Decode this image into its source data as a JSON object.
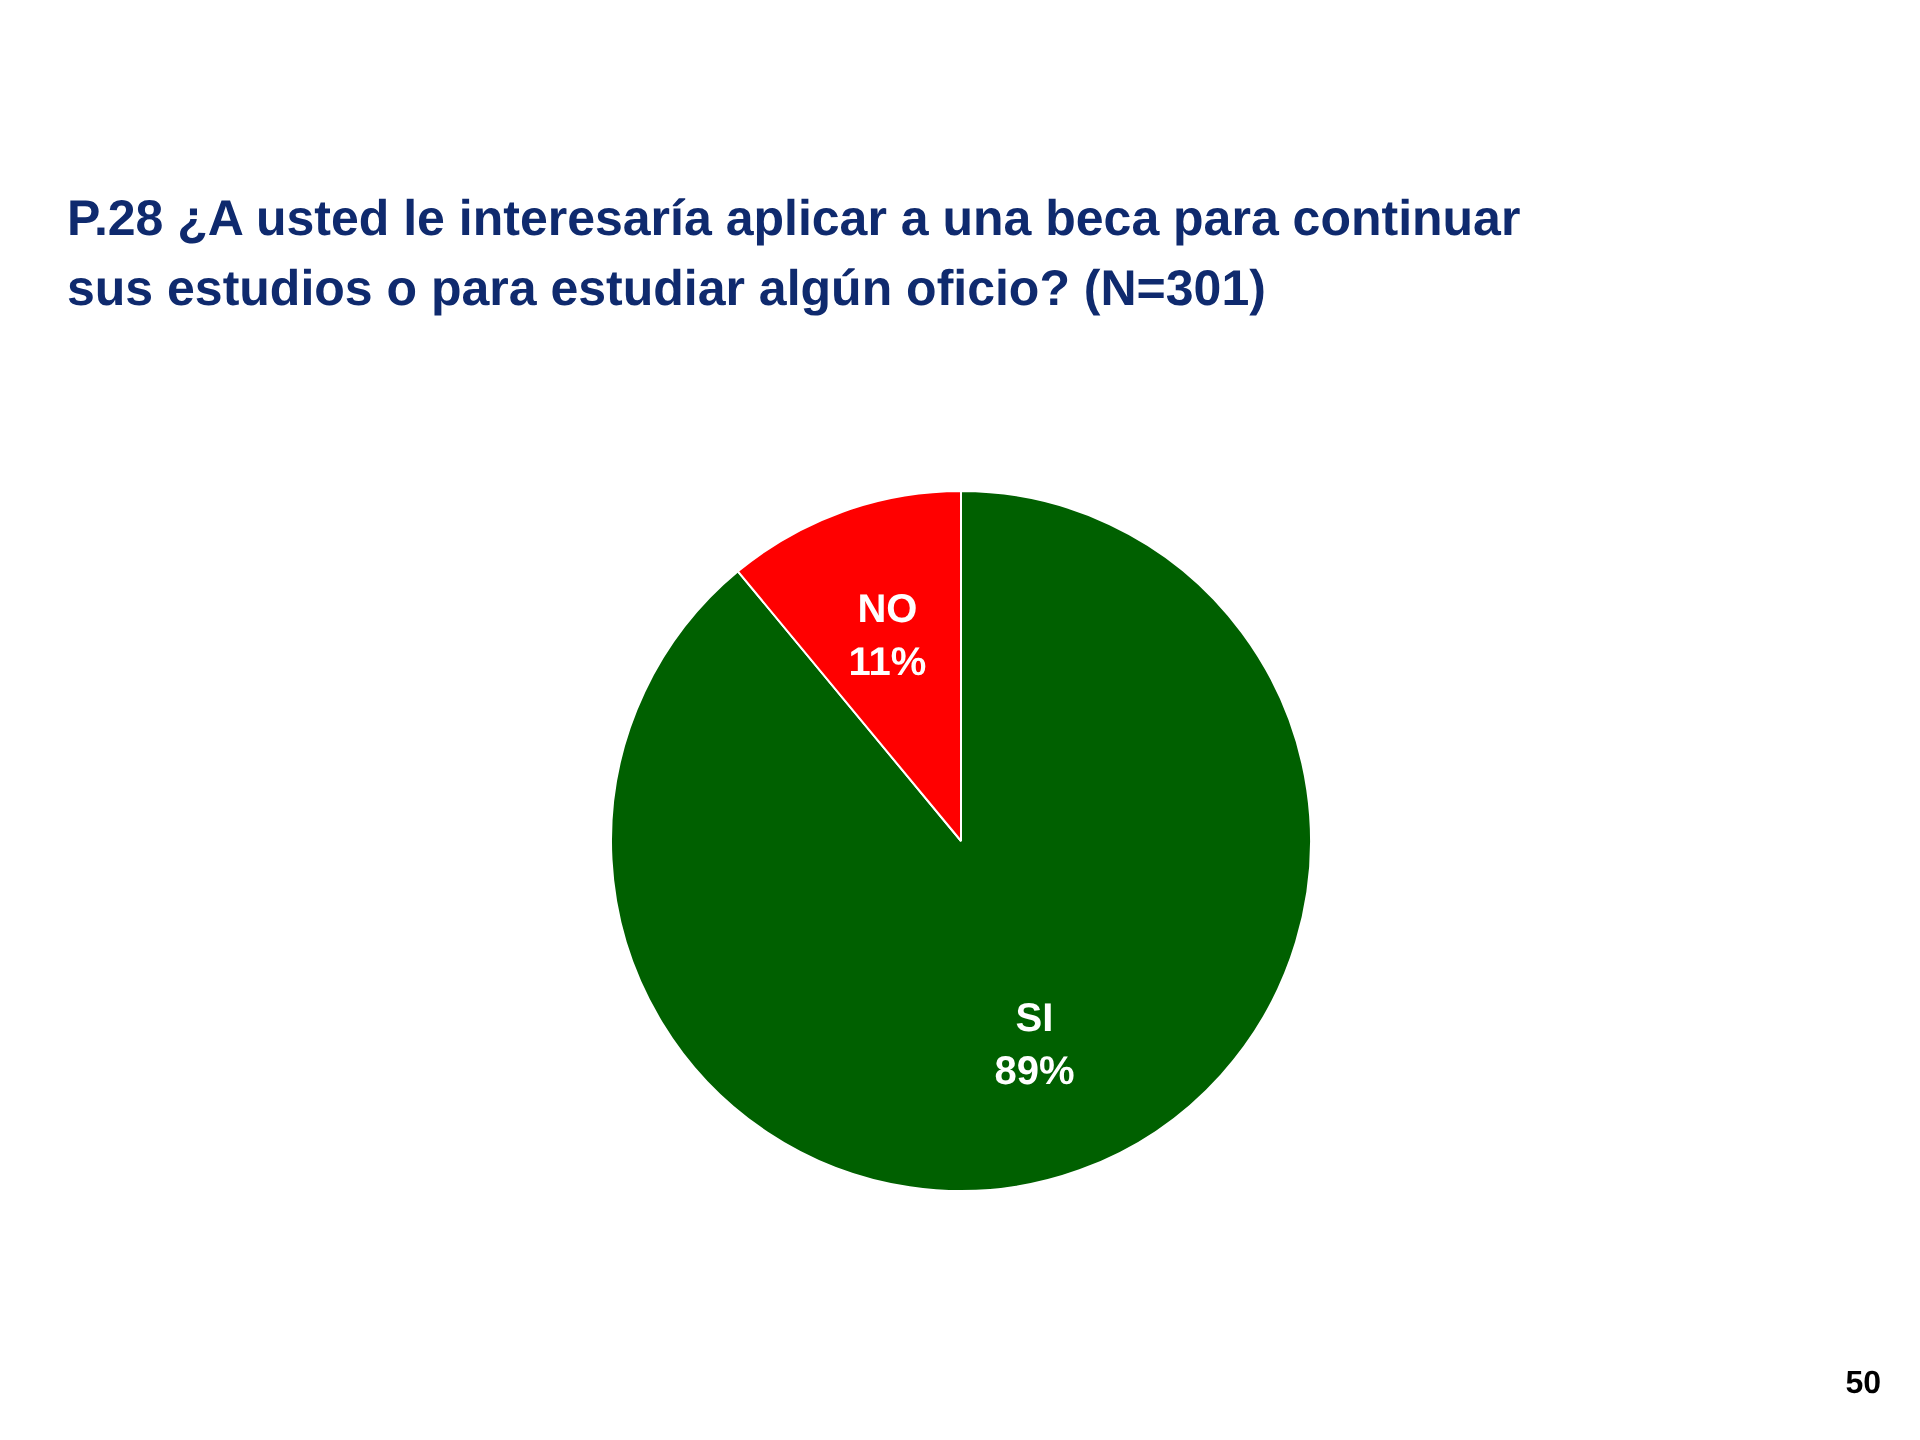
{
  "chart_data": {
    "type": "pie",
    "title": "P.28 ¿A usted le interesaría aplicar a una beca para continuar sus estudios o para estudiar algún oficio? (N=301)",
    "categories": [
      "SI",
      "NO"
    ],
    "values": [
      89,
      11
    ],
    "colors": [
      "#006000",
      "#ff0000"
    ],
    "value_labels": [
      "89%",
      "11%"
    ],
    "annotations": [
      "50"
    ]
  }
}
